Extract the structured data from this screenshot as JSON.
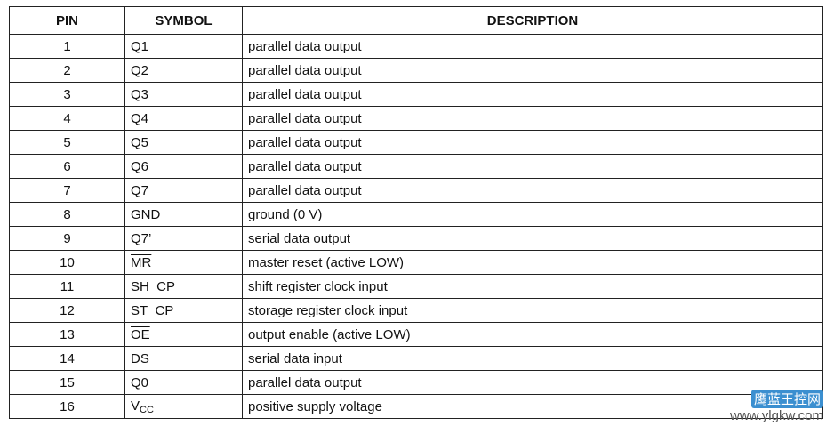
{
  "headers": {
    "pin": "PIN",
    "symbol": "SYMBOL",
    "description": "DESCRIPTION"
  },
  "rows": [
    {
      "pin": "1",
      "symbol": "Q1",
      "description": "parallel data output"
    },
    {
      "pin": "2",
      "symbol": "Q2",
      "description": "parallel data output"
    },
    {
      "pin": "3",
      "symbol": "Q3",
      "description": "parallel data output"
    },
    {
      "pin": "4",
      "symbol": "Q4",
      "description": "parallel data output"
    },
    {
      "pin": "5",
      "symbol": "Q5",
      "description": "parallel data output"
    },
    {
      "pin": "6",
      "symbol": "Q6",
      "description": "parallel data output"
    },
    {
      "pin": "7",
      "symbol": "Q7",
      "description": "parallel data output"
    },
    {
      "pin": "8",
      "symbol": "GND",
      "description": "ground (0 V)"
    },
    {
      "pin": "9",
      "symbol": "Q7’",
      "description": "serial data output"
    },
    {
      "pin": "10",
      "symbol": "MR",
      "overline": true,
      "description": "master reset (active LOW)"
    },
    {
      "pin": "11",
      "symbol": "SH_CP",
      "description": "shift register clock input"
    },
    {
      "pin": "12",
      "symbol": "ST_CP",
      "description": "storage register clock input"
    },
    {
      "pin": "13",
      "symbol": "OE",
      "overline": true,
      "description": "output enable (active LOW)"
    },
    {
      "pin": "14",
      "symbol": "DS",
      "description": "serial data input"
    },
    {
      "pin": "15",
      "symbol": "Q0",
      "description": "parallel data output"
    },
    {
      "pin": "16",
      "symbol": "V",
      "symbol_sub": "CC",
      "description": "positive supply voltage"
    }
  ],
  "watermark": {
    "logo": "鹰蓝王控网",
    "url": "www.ylgkw.com",
    "color": "#3b8fd0"
  }
}
